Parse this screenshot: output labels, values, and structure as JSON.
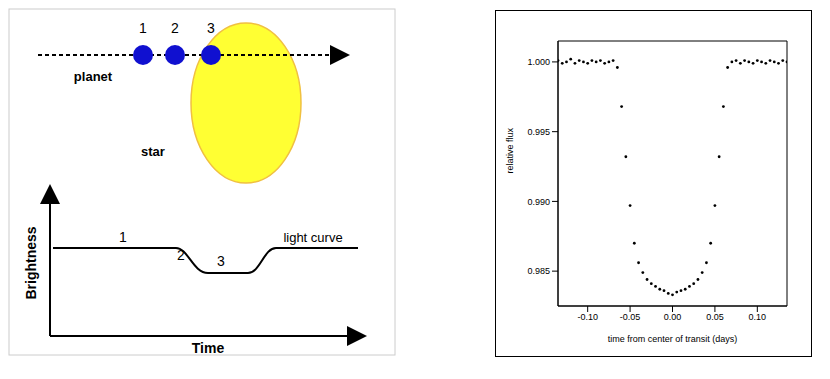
{
  "diagram": {
    "planet_positions": [
      "1",
      "2",
      "3"
    ],
    "planet_label": "planet",
    "star_label": "star",
    "y_axis_label": "Brightness",
    "x_axis_label": "Time",
    "curve_label": "light curve",
    "curve_points": [
      "1",
      "2",
      "3"
    ]
  },
  "chart_data": {
    "type": "scatter",
    "xlabel": "time from center of transit (days)",
    "ylabel": "relative flux",
    "color": "#000000",
    "marker": "dot",
    "x": [
      -0.135,
      -0.13,
      -0.125,
      -0.12,
      -0.115,
      -0.11,
      -0.105,
      -0.1,
      -0.095,
      -0.09,
      -0.085,
      -0.08,
      -0.075,
      -0.07,
      -0.065,
      -0.06,
      -0.055,
      -0.05,
      -0.045,
      -0.04,
      -0.035,
      -0.03,
      -0.025,
      -0.02,
      -0.015,
      -0.01,
      -0.005,
      0,
      0.005,
      0.01,
      0.015,
      0.02,
      0.025,
      0.03,
      0.035,
      0.04,
      0.045,
      0.05,
      0.055,
      0.06,
      0.065,
      0.07,
      0.075,
      0.08,
      0.085,
      0.09,
      0.095,
      0.1,
      0.105,
      0.11,
      0.115,
      0.12,
      0.125,
      0.13,
      0.135
    ],
    "values": [
      1.0001,
      0.9999,
      1.0,
      1.0002,
      0.9999,
      1.0001,
      1.0,
      0.9999,
      1.0001,
      1.0,
      1.0001,
      0.9999,
      1.0,
      1.0001,
      0.9996,
      0.9968,
      0.9932,
      0.9897,
      0.987,
      0.9856,
      0.9849,
      0.9844,
      0.9841,
      0.9839,
      0.9837,
      0.9836,
      0.9834,
      0.9833,
      0.9835,
      0.9836,
      0.9837,
      0.9839,
      0.9841,
      0.9844,
      0.9849,
      0.9856,
      0.987,
      0.9897,
      0.9932,
      0.9968,
      0.9996,
      1.0,
      1.0001,
      0.9999,
      1.0001,
      1.0,
      0.9999,
      1.0001,
      1.0,
      0.9999,
      1.0001,
      1.0,
      0.9999,
      1.0001,
      1.0
    ],
    "xlim": [
      -0.135,
      0.135
    ],
    "ylim": [
      0.9825,
      1.0015
    ],
    "xticks": [
      {
        "value": -0.1,
        "label": "-0.10"
      },
      {
        "value": -0.05,
        "label": "-0.05"
      },
      {
        "value": 0,
        "label": "0.00"
      },
      {
        "value": 0.05,
        "label": "0.05"
      },
      {
        "value": 0.1,
        "label": "0.10"
      }
    ],
    "yticks": [
      {
        "value": 0.985,
        "label": "0.985"
      },
      {
        "value": 0.99,
        "label": "0.990"
      },
      {
        "value": 0.995,
        "label": "0.995"
      },
      {
        "value": 1,
        "label": "1.000"
      }
    ]
  }
}
